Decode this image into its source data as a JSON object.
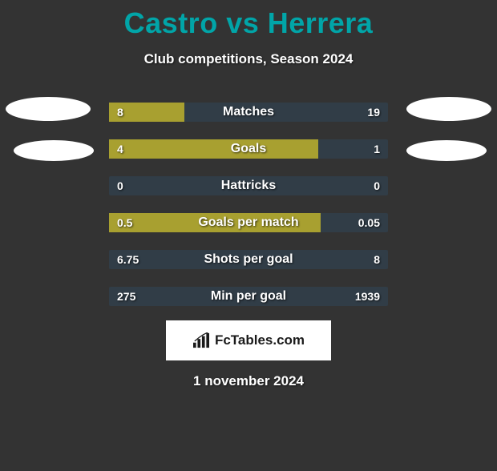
{
  "header": {
    "title": "Castro vs Herrera",
    "subtitle": "Club competitions, Season 2024",
    "title_color": "#01a5a8",
    "subtitle_color": "#ffffff"
  },
  "style": {
    "background": "#333333",
    "bar_bg": "#313d47",
    "bar_fill": "#a8a030",
    "text_color": "#ffffff",
    "oval_color": "#ffffff"
  },
  "stats": [
    {
      "label": "Matches",
      "left_value": "8",
      "right_value": "19",
      "left_width_pct": 27,
      "right_width_pct": 0
    },
    {
      "label": "Goals",
      "left_value": "4",
      "right_value": "1",
      "left_width_pct": 75,
      "right_width_pct": 0
    },
    {
      "label": "Hattricks",
      "left_value": "0",
      "right_value": "0",
      "left_width_pct": 0,
      "right_width_pct": 0
    },
    {
      "label": "Goals per match",
      "left_value": "0.5",
      "right_value": "0.05",
      "left_width_pct": 76,
      "right_width_pct": 0
    },
    {
      "label": "Shots per goal",
      "left_value": "6.75",
      "right_value": "8",
      "left_width_pct": 0,
      "right_width_pct": 0
    },
    {
      "label": "Min per goal",
      "left_value": "275",
      "right_value": "1939",
      "left_width_pct": 0,
      "right_width_pct": 0
    }
  ],
  "logo": {
    "text": "FcTables.com"
  },
  "footer": {
    "date": "1 november 2024"
  }
}
